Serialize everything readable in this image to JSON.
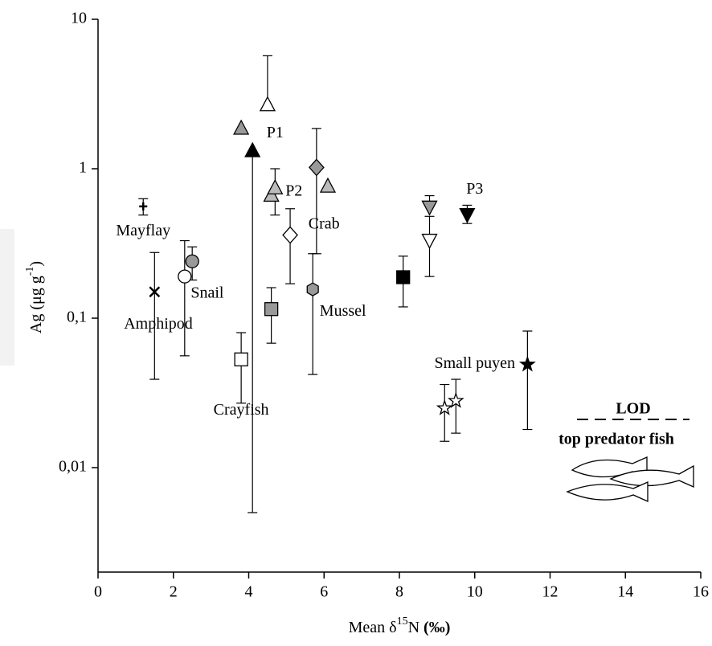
{
  "chart_data": {
    "type": "scatter",
    "xlabel": [
      "Mean δ",
      "15",
      "N ",
      "(‰)"
    ],
    "ylabel": [
      "Ag (μg g",
      "-1",
      ")"
    ],
    "xlim": [
      0,
      16
    ],
    "xticks": [
      0,
      2,
      4,
      6,
      8,
      10,
      12,
      14,
      16
    ],
    "ylim": [
      0.002,
      10
    ],
    "log_y": true,
    "yticks": [
      {
        "value": 10,
        "label": "10"
      },
      {
        "value": 1,
        "label": "1"
      },
      {
        "value": 0.1,
        "label": "0,1"
      },
      {
        "value": 0.01,
        "label": "0,01"
      }
    ],
    "points": [
      {
        "x": 1.2,
        "y": 0.56,
        "low": 0.49,
        "high": 0.63,
        "marker": "plus",
        "color": "#000000"
      },
      {
        "x": 1.5,
        "y": 0.15,
        "low": 0.039,
        "high": 0.275,
        "marker": "x",
        "color": "#000000"
      },
      {
        "x": 2.3,
        "y": 0.19,
        "low": 0.056,
        "high": 0.33,
        "marker": "circle",
        "color": "#ffffff"
      },
      {
        "x": 2.5,
        "y": 0.24,
        "low": 0.18,
        "high": 0.3,
        "marker": "circle",
        "color": "#999999"
      },
      {
        "x": 3.8,
        "y": 0.053,
        "low": 0.027,
        "high": 0.08,
        "marker": "square",
        "color": "#ffffff"
      },
      {
        "x": 3.8,
        "y": 1.88,
        "low": null,
        "high": null,
        "marker": "triangle",
        "color": "#999999"
      },
      {
        "x": 4.1,
        "y": 1.33,
        "low": 0.005,
        "high": null,
        "marker": "triangle",
        "color": "#000000"
      },
      {
        "x": 4.5,
        "y": 2.7,
        "low": null,
        "high": 5.7,
        "marker": "triangle",
        "color": "#ffffff"
      },
      {
        "x": 4.6,
        "y": 0.115,
        "low": 0.068,
        "high": 0.16,
        "marker": "square",
        "color": "#999999"
      },
      {
        "x": 4.6,
        "y": 0.67,
        "low": null,
        "high": null,
        "marker": "triangle",
        "color": "#bbbbbb"
      },
      {
        "x": 4.7,
        "y": 0.75,
        "low": 0.49,
        "high": 1.0,
        "marker": "triangle",
        "color": "#bbbbbb"
      },
      {
        "x": 5.1,
        "y": 0.36,
        "low": 0.17,
        "high": 0.54,
        "marker": "diamond",
        "color": "#ffffff"
      },
      {
        "x": 5.8,
        "y": 1.02,
        "low": 0.27,
        "high": 1.86,
        "marker": "diamond",
        "color": "#999999"
      },
      {
        "x": 5.7,
        "y": 0.156,
        "low": 0.042,
        "high": 0.27,
        "marker": "hexagon",
        "color": "#999999"
      },
      {
        "x": 6.1,
        "y": 0.77,
        "low": null,
        "high": null,
        "marker": "triangle",
        "color": "#bbbbbb"
      },
      {
        "x": 8.1,
        "y": 0.188,
        "low": 0.119,
        "high": 0.26,
        "marker": "square",
        "color": "#000000"
      },
      {
        "x": 8.8,
        "y": 0.55,
        "low": null,
        "high": 0.66,
        "marker": "down",
        "color": "#999999"
      },
      {
        "x": 8.8,
        "y": 0.33,
        "low": 0.19,
        "high": 0.48,
        "marker": "down",
        "color": "#ffffff"
      },
      {
        "x": 9.8,
        "y": 0.49,
        "low": 0.43,
        "high": 0.57,
        "marker": "down",
        "color": "#000000"
      },
      {
        "x": 9.2,
        "y": 0.025,
        "low": 0.015,
        "high": 0.036,
        "marker": "star",
        "color": "#ffffff"
      },
      {
        "x": 9.5,
        "y": 0.028,
        "low": 0.017,
        "high": 0.039,
        "marker": "star",
        "color": "#ffffff"
      },
      {
        "x": 11.4,
        "y": 0.049,
        "low": 0.018,
        "high": 0.082,
        "marker": "star",
        "color": "#000000"
      }
    ],
    "annotations": [
      {
        "text": "Mayflay",
        "x": 1.2,
        "y": 0.38
      },
      {
        "text": "Amphipod",
        "x": 1.6,
        "y": 0.09
      },
      {
        "text": "Snail",
        "x": 2.9,
        "y": 0.145
      },
      {
        "text": "Crayfish",
        "x": 3.8,
        "y": 0.024
      },
      {
        "text": "P1",
        "x": 4.7,
        "y": 1.72
      },
      {
        "text": "P2",
        "x": 5.2,
        "y": 0.7
      },
      {
        "text": "Crab",
        "x": 6.0,
        "y": 0.42
      },
      {
        "text": "Mussel",
        "x": 6.5,
        "y": 0.11
      },
      {
        "text": "P3",
        "x": 10.0,
        "y": 0.72
      },
      {
        "text": "Small puyen",
        "x": 10.0,
        "y": 0.049
      }
    ],
    "lod_label": "LOD",
    "fish_label": "top predator fish"
  }
}
